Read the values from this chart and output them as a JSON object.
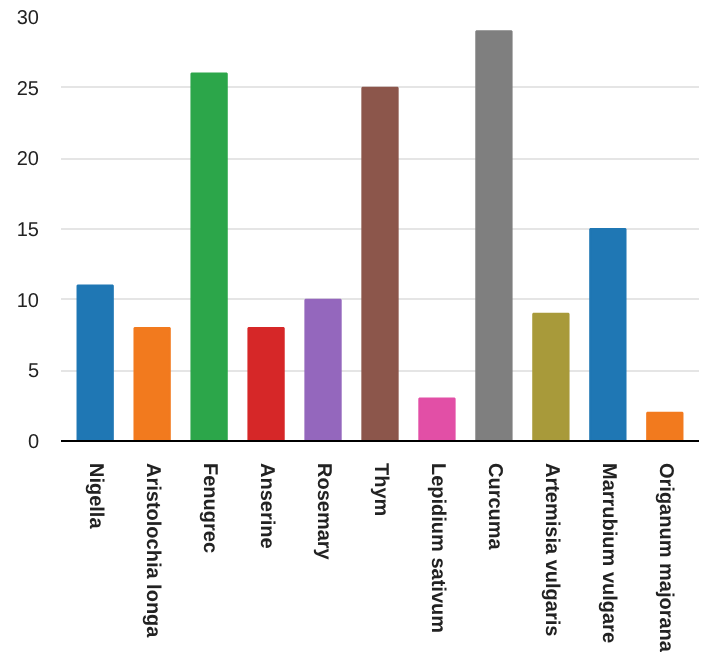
{
  "chart_data": {
    "type": "bar",
    "categories": [
      "Nigella",
      "Aristolochia longa",
      "Fenugrec",
      "Anserine",
      "Rosemary",
      "Thym",
      "Lepidium sativum",
      "Curcuma",
      "Artemisia vulgaris",
      "Marrubium vulgare",
      "Origanum majorana"
    ],
    "values": [
      11,
      8,
      26,
      8,
      10,
      25,
      3,
      29,
      9,
      15,
      2
    ],
    "colors": [
      "#1f77b4",
      "#f27a1e",
      "#2ca64a",
      "#d62728",
      "#9467bd",
      "#8c564b",
      "#e24fa6",
      "#7f7f7f",
      "#a89a3a",
      "#1f77b4",
      "#f27a1e"
    ],
    "ylim": [
      0,
      30
    ],
    "yticks": [
      0,
      5,
      10,
      15,
      20,
      25,
      30
    ],
    "grid": "y"
  }
}
